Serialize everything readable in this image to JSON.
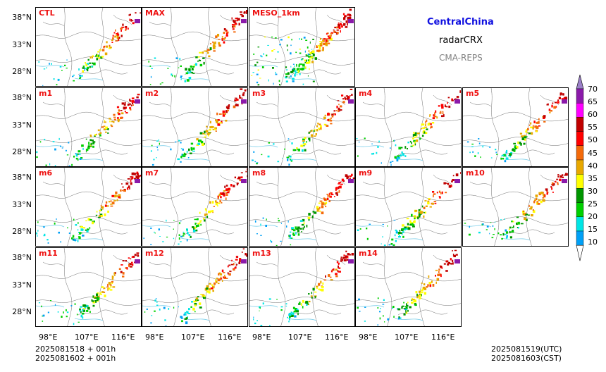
{
  "title": {
    "region": "CentralChina",
    "product": "radarCRX",
    "source": "CMA-REPS"
  },
  "panels": [
    {
      "label": "CTL"
    },
    {
      "label": "MAX"
    },
    {
      "label": "MESO_1km"
    },
    {
      "label": "m1"
    },
    {
      "label": "m2"
    },
    {
      "label": "m3"
    },
    {
      "label": "m4"
    },
    {
      "label": "m5"
    },
    {
      "label": "m6"
    },
    {
      "label": "m7"
    },
    {
      "label": "m8"
    },
    {
      "label": "m9"
    },
    {
      "label": "m10"
    },
    {
      "label": "m11"
    },
    {
      "label": "m12"
    },
    {
      "label": "m13"
    },
    {
      "label": "m14"
    }
  ],
  "axes": {
    "lat_ticks": [
      "38°N",
      "33°N",
      "28°N"
    ],
    "lon_ticks": [
      "98°E",
      "107°E",
      "116°E"
    ]
  },
  "colorbar": {
    "levels": [
      "70",
      "65",
      "60",
      "55",
      "50",
      "45",
      "40",
      "35",
      "30",
      "25",
      "20",
      "15",
      "10"
    ],
    "colors": [
      "#9b80c8",
      "#8b1aaa",
      "#ff00ff",
      "#c00000",
      "#ff0000",
      "#f46a0a",
      "#e8a800",
      "#ffff00",
      "#009600",
      "#00d000",
      "#00e5e5",
      "#00a0f6"
    ]
  },
  "footer": {
    "init_utc_line": "2025081518  +  001h",
    "init_cst_line": "2025081602  +  001h",
    "valid_utc": "2025081519(UTC)",
    "valid_cst": "2025081603(CST)"
  }
}
